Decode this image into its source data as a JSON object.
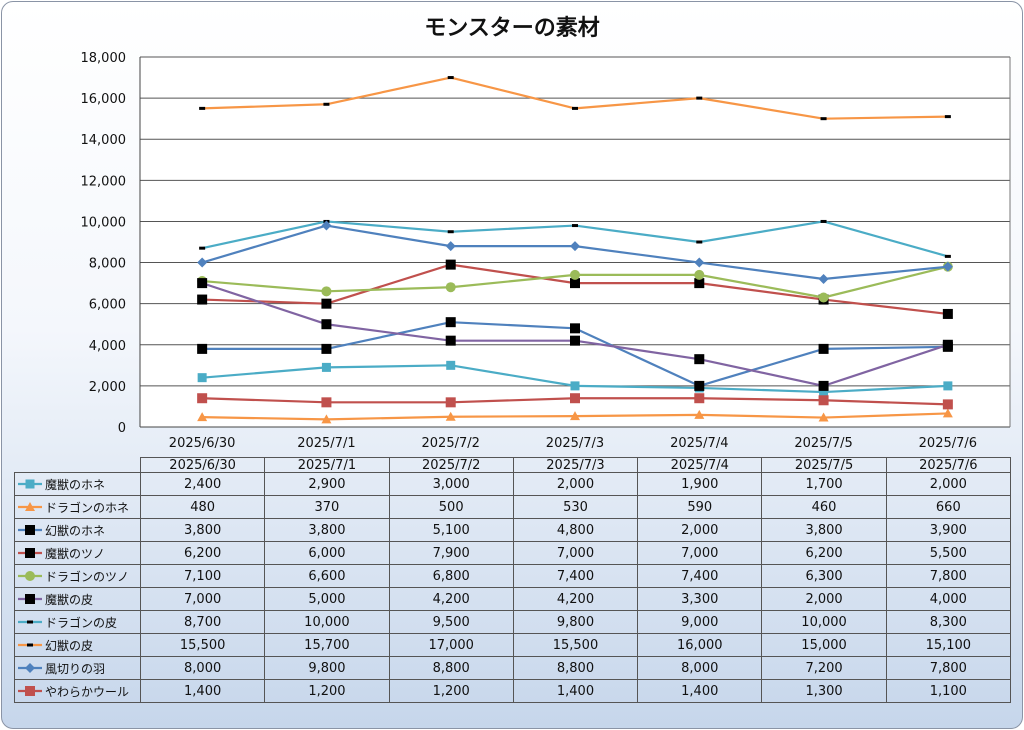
{
  "chart_data": {
    "type": "line",
    "title": "モンスターの素材",
    "categories": [
      "2025/6/30",
      "2025/7/1",
      "2025/7/2",
      "2025/7/3",
      "2025/7/4",
      "2025/7/5",
      "2025/7/6"
    ],
    "ylim": [
      0,
      18000
    ],
    "yticks": [
      "0",
      "2,000",
      "4,000",
      "6,000",
      "8,000",
      "10,000",
      "12,000",
      "14,000",
      "16,000",
      "18,000"
    ],
    "grid": true,
    "legend": "data-table",
    "series": [
      {
        "name": "魔獣のホネ",
        "values": [
          2400,
          2900,
          3000,
          2000,
          1900,
          1700,
          2000
        ],
        "labels": [
          "2,400",
          "2,900",
          "3,000",
          "2,000",
          "1,900",
          "1,700",
          "2,000"
        ],
        "color": "#4bacc6",
        "marker": "square-small"
      },
      {
        "name": "ドラゴンのホネ",
        "values": [
          480,
          370,
          500,
          530,
          590,
          460,
          660
        ],
        "labels": [
          "480",
          "370",
          "500",
          "530",
          "590",
          "460",
          "660"
        ],
        "color": "#f79646",
        "marker": "triangle"
      },
      {
        "name": "幻獣のホネ",
        "values": [
          3800,
          3800,
          5100,
          4800,
          2000,
          3800,
          3900
        ],
        "labels": [
          "3,800",
          "3,800",
          "5,100",
          "4,800",
          "2,000",
          "3,800",
          "3,900"
        ],
        "color": "#4f81bd",
        "marker": "square-black"
      },
      {
        "name": "魔獣のツノ",
        "values": [
          6200,
          6000,
          7900,
          7000,
          7000,
          6200,
          5500
        ],
        "labels": [
          "6,200",
          "6,000",
          "7,900",
          "7,000",
          "7,000",
          "6,200",
          "5,500"
        ],
        "color": "#c0504d",
        "marker": "square-black"
      },
      {
        "name": "ドラゴンのツノ",
        "values": [
          7100,
          6600,
          6800,
          7400,
          7400,
          6300,
          7800
        ],
        "labels": [
          "7,100",
          "6,600",
          "6,800",
          "7,400",
          "7,400",
          "6,300",
          "7,800"
        ],
        "color": "#9bbb59",
        "marker": "circle"
      },
      {
        "name": "魔獣の皮",
        "values": [
          7000,
          5000,
          4200,
          4200,
          3300,
          2000,
          4000
        ],
        "labels": [
          "7,000",
          "5,000",
          "4,200",
          "4,200",
          "3,300",
          "2,000",
          "4,000"
        ],
        "color": "#8064a2",
        "marker": "square-black"
      },
      {
        "name": "ドラゴンの皮",
        "values": [
          8700,
          10000,
          9500,
          9800,
          9000,
          10000,
          8300
        ],
        "labels": [
          "8,700",
          "10,000",
          "9,500",
          "9,800",
          "9,000",
          "10,000",
          "8,300"
        ],
        "color": "#4bacc6",
        "marker": "dash"
      },
      {
        "name": "幻獣の皮",
        "values": [
          15500,
          15700,
          17000,
          15500,
          16000,
          15000,
          15100
        ],
        "labels": [
          "15,500",
          "15,700",
          "17,000",
          "15,500",
          "16,000",
          "15,000",
          "15,100"
        ],
        "color": "#f79646",
        "marker": "dash"
      },
      {
        "name": "風切りの羽",
        "values": [
          8000,
          9800,
          8800,
          8800,
          8000,
          7200,
          7800
        ],
        "labels": [
          "8,000",
          "9,800",
          "8,800",
          "8,800",
          "8,000",
          "7,200",
          "7,800"
        ],
        "color": "#4f81bd",
        "marker": "diamond"
      },
      {
        "name": "やわらかウール",
        "values": [
          1400,
          1200,
          1200,
          1400,
          1400,
          1300,
          1100
        ],
        "labels": [
          "1,400",
          "1,200",
          "1,200",
          "1,400",
          "1,400",
          "1,300",
          "1,100"
        ],
        "color": "#c0504d",
        "marker": "square"
      }
    ]
  }
}
